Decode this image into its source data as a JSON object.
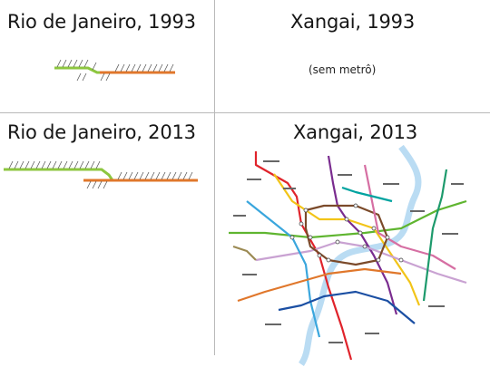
{
  "panels": {
    "rio_1993": {
      "title": "Rio de Janeiro, 1993"
    },
    "xangai_1993": {
      "title": "Xangai, 1993",
      "note": "(sem metrô)"
    },
    "rio_2013": {
      "title": "Rio de Janeiro, 2013"
    },
    "xangai_2013": {
      "title": "Xangai, 2013"
    }
  },
  "colors": {
    "line_green": "#8dc63f",
    "line_orange": "#e0772b",
    "divider": "#b9b9b9"
  }
}
